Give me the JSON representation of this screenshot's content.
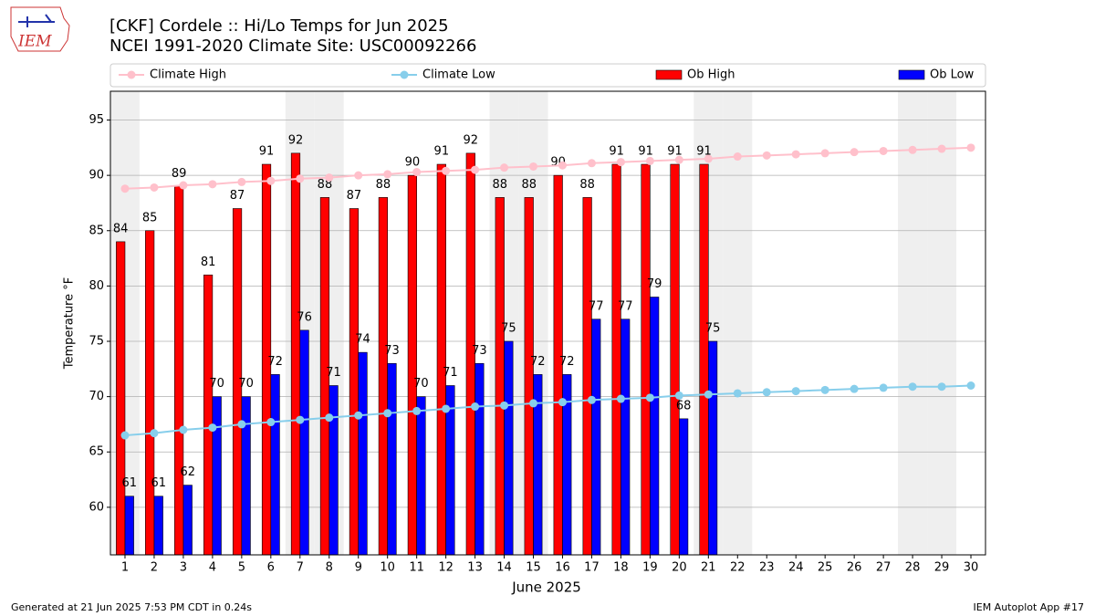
{
  "logo_text": "IEM",
  "footer_left": "Generated at 21 Jun 2025 7:53 PM CDT in 0.24s",
  "footer_right": "IEM Autoplot App #17",
  "chart_data": {
    "type": "bar",
    "title": "[CKF] Cordele :: Hi/Lo Temps for Jun 2025",
    "subtitle": "NCEI 1991-2020 Climate Site: USC00092266",
    "x_label": "June 2025",
    "y_label": "Temperature °F",
    "categories": [
      "1",
      "2",
      "3",
      "4",
      "5",
      "6",
      "7",
      "8",
      "9",
      "10",
      "11",
      "12",
      "13",
      "14",
      "15",
      "16",
      "17",
      "18",
      "19",
      "20",
      "21",
      "22",
      "23",
      "24",
      "25",
      "26",
      "27",
      "28",
      "29",
      "30"
    ],
    "shaded_categories": [
      "1",
      "7",
      "8",
      "14",
      "15",
      "21",
      "22",
      "28",
      "29"
    ],
    "ylim": [
      55.7,
      97.6
    ],
    "yticks": [
      60,
      65,
      70,
      75,
      80,
      85,
      90,
      95
    ],
    "grid": true,
    "legend": "top",
    "series": [
      {
        "name": "Climate High",
        "type": "line",
        "color": "#ffc0cb",
        "values": [
          88.8,
          88.9,
          89.1,
          89.2,
          89.4,
          89.5,
          89.7,
          89.8,
          90.0,
          90.1,
          90.3,
          90.4,
          90.5,
          90.7,
          90.8,
          90.9,
          91.1,
          91.2,
          91.3,
          91.4,
          91.5,
          91.7,
          91.8,
          91.9,
          92.0,
          92.1,
          92.2,
          92.3,
          92.4,
          92.5
        ]
      },
      {
        "name": "Climate Low",
        "type": "line",
        "color": "#87ceeb",
        "values": [
          66.5,
          66.7,
          67.0,
          67.2,
          67.5,
          67.7,
          67.9,
          68.1,
          68.3,
          68.5,
          68.7,
          68.9,
          69.1,
          69.2,
          69.4,
          69.5,
          69.7,
          69.8,
          69.9,
          70.1,
          70.2,
          70.3,
          70.4,
          70.5,
          70.6,
          70.7,
          70.8,
          70.9,
          70.9,
          71.0
        ]
      },
      {
        "name": "Ob High",
        "type": "bar",
        "color": "#ff0000",
        "values": [
          84,
          85,
          89,
          81,
          87,
          91,
          92,
          88,
          87,
          88,
          90,
          91,
          92,
          88,
          88,
          90,
          88,
          91,
          91,
          91,
          91,
          null,
          null,
          null,
          null,
          null,
          null,
          null,
          null,
          null
        ]
      },
      {
        "name": "Ob Low",
        "type": "bar",
        "color": "#0000ff",
        "values": [
          61,
          61,
          62,
          70,
          70,
          72,
          76,
          71,
          74,
          73,
          70,
          71,
          73,
          75,
          72,
          72,
          77,
          77,
          79,
          68,
          75,
          null,
          null,
          null,
          null,
          null,
          null,
          null,
          null,
          null
        ]
      }
    ]
  }
}
